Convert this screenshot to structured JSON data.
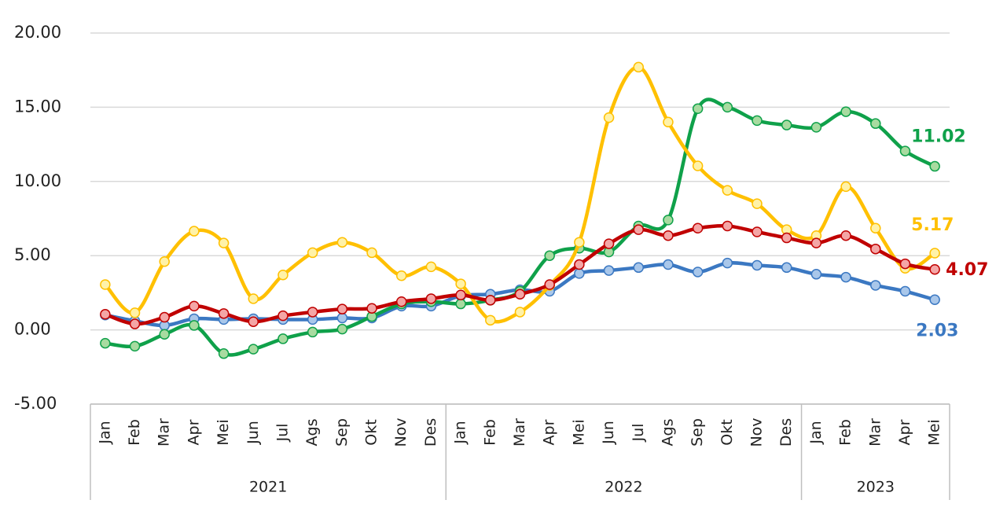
{
  "chart_data": {
    "type": "line",
    "categories": [
      "Jan",
      "Feb",
      "Mar",
      "Apr",
      "Mei",
      "Jun",
      "Jul",
      "Ags",
      "Sep",
      "Okt",
      "Nov",
      "Des",
      "Jan",
      "Feb",
      "Mar",
      "Apr",
      "Mei",
      "Jun",
      "Jul",
      "Ags",
      "Sep",
      "Okt",
      "Nov",
      "Des",
      "Jan",
      "Feb",
      "Mar",
      "Apr",
      "Mei"
    ],
    "groups": [
      {
        "label": "2021",
        "span": 12
      },
      {
        "label": "2022",
        "span": 12
      },
      {
        "label": "2023",
        "span": 5
      }
    ],
    "series": [
      {
        "color": "#3b78c2",
        "marker_fill": "#a9c7ea",
        "values": [
          1.0,
          0.6,
          0.3,
          0.75,
          0.7,
          0.75,
          0.7,
          0.7,
          0.8,
          0.8,
          1.6,
          1.6,
          2.3,
          2.4,
          2.7,
          2.6,
          3.8,
          4.0,
          4.2,
          4.4,
          3.9,
          4.5,
          4.35,
          4.2,
          3.75,
          3.55,
          3.0,
          2.6,
          2.03
        ]
      },
      {
        "color": "#0fa14a",
        "marker_fill": "#a8dba0",
        "values": [
          -0.9,
          -1.1,
          -0.3,
          0.3,
          -1.6,
          -1.3,
          -0.6,
          -0.15,
          0.05,
          0.9,
          1.75,
          1.9,
          1.75,
          2.0,
          2.6,
          5.0,
          5.5,
          5.25,
          7.0,
          7.4,
          14.9,
          15.0,
          14.1,
          13.8,
          13.65,
          14.7,
          13.9,
          12.05,
          11.02
        ]
      },
      {
        "color": "#ffc000",
        "marker_fill": "#fff2a8",
        "values": [
          3.05,
          1.15,
          4.6,
          6.65,
          5.85,
          2.1,
          3.7,
          5.2,
          5.9,
          5.2,
          3.65,
          4.25,
          3.1,
          0.65,
          1.2,
          3.0,
          5.9,
          14.3,
          17.7,
          14.0,
          11.05,
          9.4,
          8.5,
          6.75,
          6.35,
          9.65,
          6.85,
          4.15,
          5.17
        ]
      },
      {
        "color": "#c00000",
        "marker_fill": "#f4a6a6",
        "values": [
          1.05,
          0.4,
          0.85,
          1.6,
          1.1,
          0.55,
          0.95,
          1.2,
          1.4,
          1.45,
          1.9,
          2.1,
          2.35,
          2.0,
          2.4,
          3.05,
          4.4,
          5.8,
          6.75,
          6.35,
          6.85,
          7.0,
          6.6,
          6.2,
          5.85,
          6.35,
          5.45,
          4.45,
          4.07
        ]
      }
    ],
    "ylim": [
      -5,
      20
    ],
    "yticks": [
      {
        "value": -5,
        "label": "-5.00"
      },
      {
        "value": 0,
        "label": "0.00"
      },
      {
        "value": 5,
        "label": "5.00"
      },
      {
        "value": 10,
        "label": "10.00"
      },
      {
        "value": 15,
        "label": "15.00"
      },
      {
        "value": 20,
        "label": "20.00"
      }
    ],
    "grid": true
  }
}
